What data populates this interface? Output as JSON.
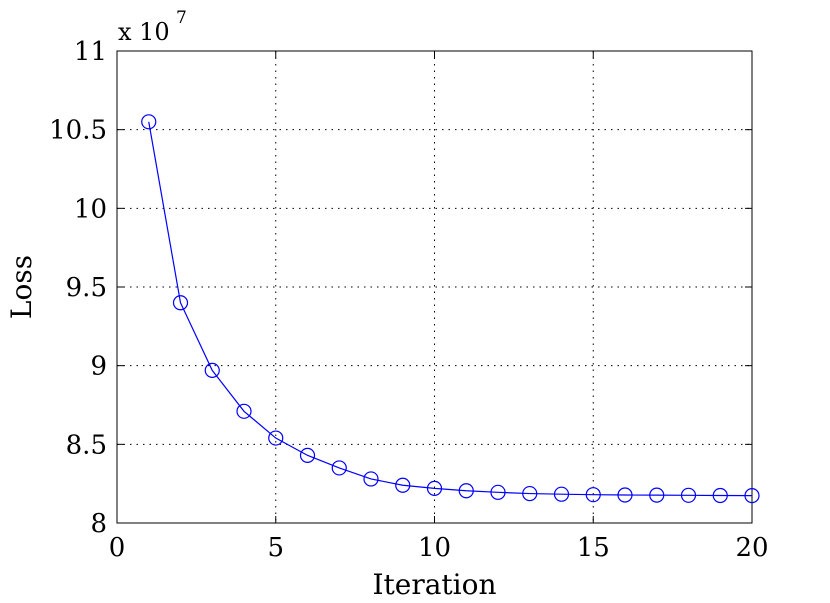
{
  "chart_data": {
    "type": "line",
    "xlabel": "Iteration",
    "ylabel": "Loss",
    "exponent_label": {
      "base": "x 10",
      "power": "7"
    },
    "xlim": [
      0,
      20
    ],
    "ylim": [
      8,
      11
    ],
    "xticks": [
      0,
      5,
      10,
      15,
      20
    ],
    "xtick_labels": [
      "0",
      "5",
      "10",
      "15",
      "20"
    ],
    "yticks": [
      8,
      8.5,
      9,
      9.5,
      10,
      10.5,
      11
    ],
    "ytick_labels": [
      "8",
      "8.5",
      "9",
      "9.5",
      "10",
      "10.5",
      "11"
    ],
    "grid": true,
    "series": [
      {
        "color": "#0000ff",
        "marker": "circle",
        "x": [
          1,
          2,
          3,
          4,
          5,
          6,
          7,
          8,
          9,
          10,
          11,
          12,
          13,
          14,
          15,
          16,
          17,
          18,
          19,
          20
        ],
        "y": [
          10.55,
          9.4,
          8.97,
          8.71,
          8.54,
          8.43,
          8.35,
          8.28,
          8.24,
          8.22,
          8.205,
          8.195,
          8.187,
          8.183,
          8.18,
          8.178,
          8.177,
          8.176,
          8.175,
          8.174
        ]
      }
    ]
  }
}
